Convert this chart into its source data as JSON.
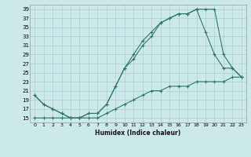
{
  "xlabel": "Humidex (Indice chaleur)",
  "ylabel": "",
  "background_color": "#cde8e8",
  "line_color": "#2a7a6a",
  "grid_color": "#aacece",
  "xlim": [
    -0.5,
    23.5
  ],
  "ylim": [
    14,
    40
  ],
  "xticks": [
    0,
    1,
    2,
    3,
    4,
    5,
    6,
    7,
    8,
    9,
    10,
    11,
    12,
    13,
    14,
    15,
    16,
    17,
    18,
    19,
    20,
    21,
    22,
    23
  ],
  "yticks": [
    15,
    17,
    19,
    21,
    23,
    25,
    27,
    29,
    31,
    33,
    35,
    37,
    39
  ],
  "line1_x": [
    0,
    1,
    2,
    3,
    4,
    5,
    6,
    7,
    8,
    9,
    10,
    11,
    12,
    13,
    14,
    15,
    16,
    17,
    18,
    19,
    20,
    21,
    22,
    23
  ],
  "line1_y": [
    20,
    18,
    17,
    16,
    15,
    15,
    16,
    16,
    18,
    22,
    26,
    29,
    32,
    34,
    36,
    37,
    38,
    38,
    39,
    39,
    39,
    29,
    26,
    24
  ],
  "line2_x": [
    0,
    1,
    2,
    3,
    4,
    5,
    6,
    7,
    8,
    9,
    10,
    11,
    12,
    13,
    14,
    15,
    16,
    17,
    18,
    19,
    20,
    21,
    22,
    23
  ],
  "line2_y": [
    20,
    18,
    17,
    16,
    15,
    15,
    16,
    16,
    18,
    22,
    26,
    28,
    31,
    33,
    36,
    37,
    38,
    38,
    39,
    34,
    29,
    26,
    26,
    24
  ],
  "line3_x": [
    0,
    1,
    2,
    3,
    4,
    5,
    6,
    7,
    8,
    9,
    10,
    11,
    12,
    13,
    14,
    15,
    16,
    17,
    18,
    19,
    20,
    21,
    22,
    23
  ],
  "line3_y": [
    15,
    15,
    15,
    15,
    15,
    15,
    15,
    15,
    16,
    17,
    18,
    19,
    20,
    21,
    21,
    22,
    22,
    22,
    23,
    23,
    23,
    23,
    24,
    24
  ]
}
